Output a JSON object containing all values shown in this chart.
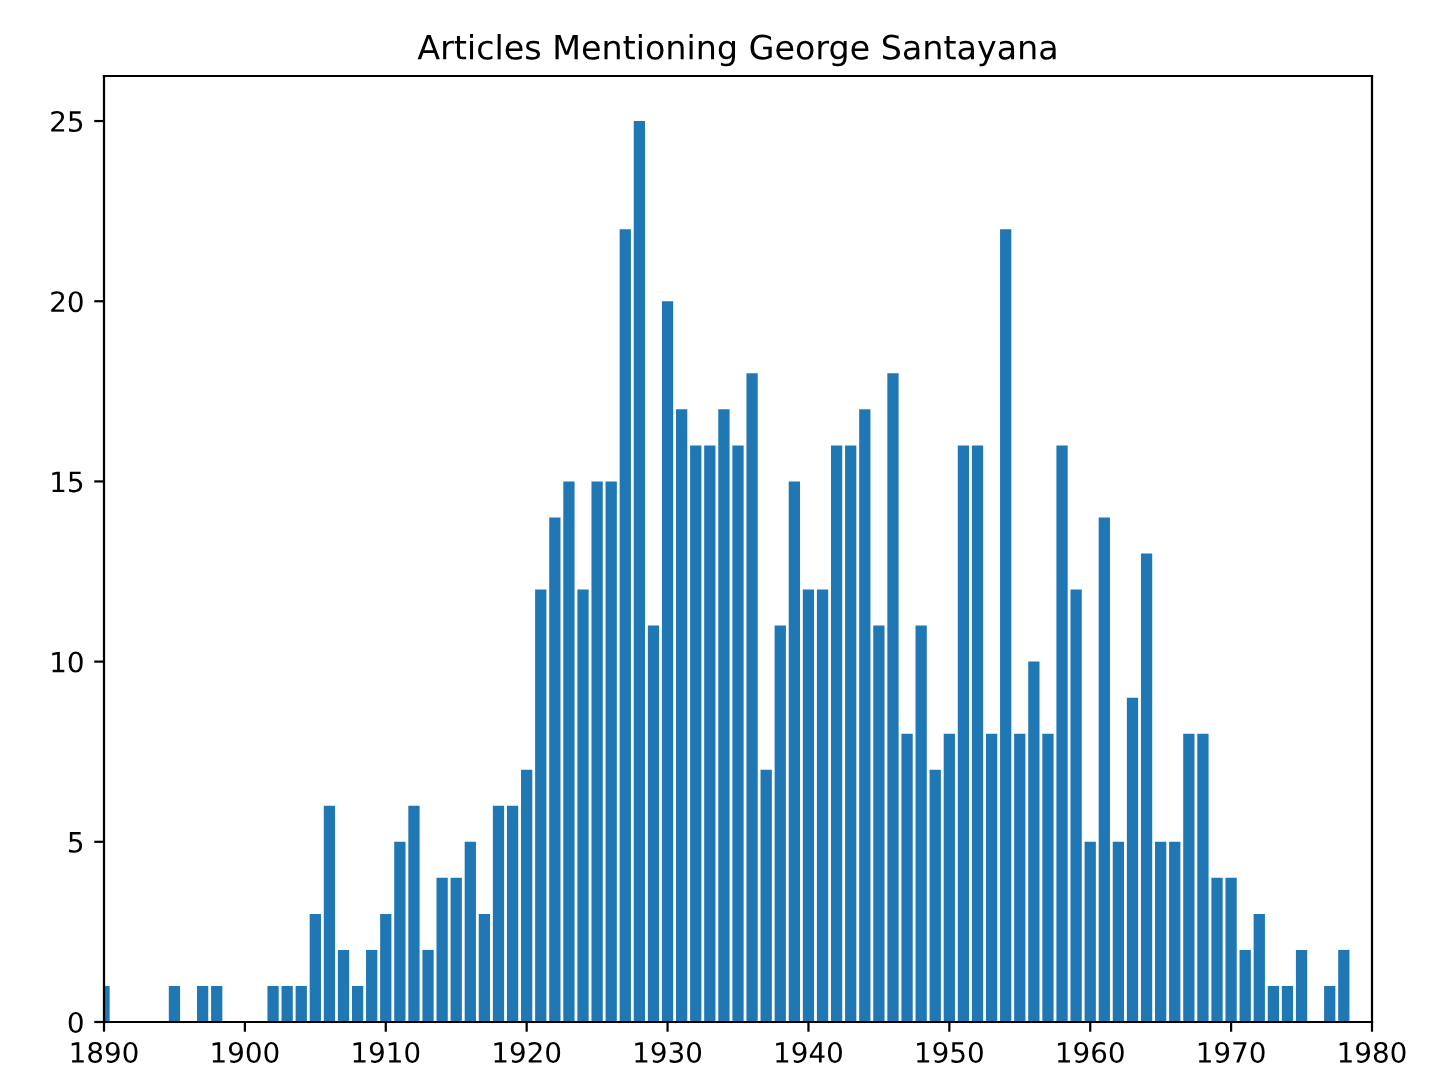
{
  "chart_data": {
    "type": "bar",
    "title": "Articles Mentioning George Santayana",
    "x": [
      1890,
      1895,
      1897,
      1898,
      1902,
      1903,
      1904,
      1905,
      1906,
      1907,
      1908,
      1909,
      1910,
      1911,
      1912,
      1913,
      1914,
      1915,
      1916,
      1917,
      1918,
      1919,
      1920,
      1921,
      1922,
      1923,
      1924,
      1925,
      1926,
      1927,
      1928,
      1929,
      1930,
      1931,
      1932,
      1933,
      1934,
      1935,
      1936,
      1937,
      1938,
      1939,
      1940,
      1941,
      1942,
      1943,
      1944,
      1945,
      1946,
      1947,
      1948,
      1949,
      1950,
      1951,
      1952,
      1953,
      1954,
      1955,
      1956,
      1957,
      1958,
      1959,
      1960,
      1961,
      1962,
      1963,
      1964,
      1965,
      1966,
      1967,
      1968,
      1969,
      1970,
      1971,
      1972,
      1973,
      1974,
      1975,
      1977,
      1978
    ],
    "values": [
      1,
      1,
      1,
      1,
      1,
      1,
      1,
      3,
      6,
      2,
      1,
      2,
      3,
      5,
      6,
      2,
      4,
      4,
      5,
      3,
      6,
      6,
      7,
      12,
      14,
      15,
      12,
      15,
      15,
      22,
      25,
      11,
      20,
      17,
      16,
      16,
      17,
      16,
      18,
      7,
      11,
      15,
      12,
      12,
      16,
      16,
      17,
      11,
      18,
      8,
      11,
      7,
      8,
      16,
      16,
      8,
      22,
      8,
      10,
      8,
      16,
      12,
      5,
      14,
      5,
      9,
      13,
      5,
      5,
      8,
      8,
      4,
      4,
      2,
      3,
      1,
      1,
      2,
      1,
      2
    ],
    "color": "#1f77b4",
    "xlim": [
      1890,
      1980
    ],
    "xticks": [
      1890,
      1900,
      1910,
      1920,
      1930,
      1940,
      1950,
      1960,
      1970,
      1980
    ],
    "ylim": [
      0,
      26.25
    ],
    "yticks": [
      0,
      5,
      10,
      15,
      20,
      25
    ],
    "grid": false
  }
}
